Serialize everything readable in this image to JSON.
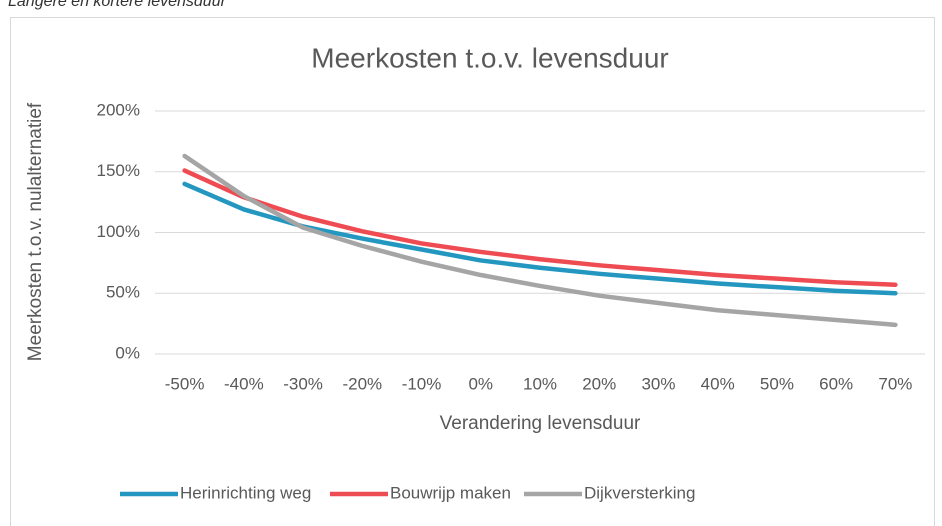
{
  "caption": "Langere en kortere levensduur",
  "chart_data": {
    "type": "line",
    "title": "Meerkosten t.o.v. levensduur",
    "x_label": "Verandering levensduur",
    "y_label": "Meerkosten t.o.v. nulalternatief",
    "categories": [
      "-50%",
      "-40%",
      "-30%",
      "-20%",
      "-10%",
      "0%",
      "10%",
      "20%",
      "30%",
      "40%",
      "50%",
      "60%",
      "70%"
    ],
    "series": [
      {
        "name": "Herinrichting weg",
        "color": "#2497c0",
        "values": [
          140,
          119,
          105,
          95,
          86,
          77,
          71,
          66,
          62,
          58,
          55,
          52,
          50
        ]
      },
      {
        "name": "Bouwrijp maken",
        "color": "#ee4b53",
        "values": [
          151,
          129,
          113,
          101,
          91,
          84,
          78,
          73,
          69,
          65,
          62,
          59,
          57
        ]
      },
      {
        "name": "Dijkversterking",
        "color": "#a5a5a5",
        "values": [
          163,
          130,
          104,
          89,
          76,
          65,
          56,
          48,
          42,
          36,
          32,
          28,
          24
        ]
      }
    ],
    "ylim": [
      0,
      200
    ],
    "yticks": [
      {
        "value": 0,
        "label": "0%"
      },
      {
        "value": 50,
        "label": "50%"
      },
      {
        "value": 100,
        "label": "100%"
      },
      {
        "value": 150,
        "label": "150%"
      },
      {
        "value": 200,
        "label": "200%"
      }
    ],
    "grid": true,
    "legend": "bottom"
  }
}
